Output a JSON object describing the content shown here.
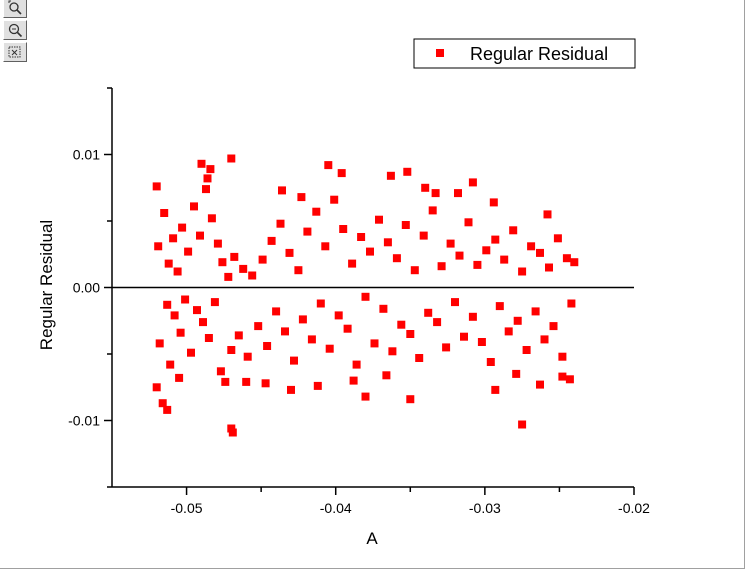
{
  "toolbar": {
    "buttons": [
      {
        "icon": "zoom-pan-icon"
      },
      {
        "icon": "zoom-in-icon"
      },
      {
        "icon": "data-reader-icon"
      }
    ]
  },
  "colors": {
    "marker": "#ff0000",
    "axis": "#000000"
  },
  "chart_data": {
    "type": "scatter",
    "title": "",
    "xlabel": "A",
    "ylabel": "Regular Residual",
    "xlim": [
      -0.055,
      -0.02
    ],
    "ylim": [
      -0.015,
      0.015
    ],
    "xticks": [
      -0.05,
      -0.04,
      -0.03,
      -0.02
    ],
    "xtick_labels": [
      "-0.05",
      "-0.04",
      "-0.03",
      "-0.02"
    ],
    "yticks": [
      -0.01,
      0.0,
      0.01
    ],
    "ytick_labels": [
      "-0.01",
      "0.00",
      "0.01"
    ],
    "reference_line_y": 0.0,
    "legend": {
      "position": "top-right",
      "entries": [
        "Regular Residual"
      ]
    },
    "series": [
      {
        "name": "Regular Residual",
        "marker": "square",
        "x": [
          -0.0519,
          -0.0518,
          -0.0515,
          -0.0513,
          -0.0512,
          -0.0511,
          -0.0509,
          -0.0508,
          -0.0506,
          -0.0504,
          -0.0503,
          -0.0501,
          -0.0499,
          -0.0497,
          -0.0495,
          -0.0493,
          -0.0491,
          -0.0489,
          -0.0487,
          -0.0485,
          -0.0483,
          -0.0481,
          -0.0479,
          -0.0477,
          -0.0476,
          -0.0474,
          -0.0472,
          -0.047,
          -0.0468,
          -0.0465,
          -0.0462,
          -0.0459,
          -0.0456,
          -0.0452,
          -0.0449,
          -0.0446,
          -0.0443,
          -0.044,
          -0.0437,
          -0.0434,
          -0.0431,
          -0.0428,
          -0.0425,
          -0.0422,
          -0.0419,
          -0.0416,
          -0.0413,
          -0.041,
          -0.0407,
          -0.0404,
          -0.0401,
          -0.0398,
          -0.0395,
          -0.0392,
          -0.0389,
          -0.0386,
          -0.0383,
          -0.038,
          -0.0377,
          -0.0374,
          -0.0371,
          -0.0368,
          -0.0365,
          -0.0362,
          -0.0359,
          -0.0356,
          -0.0353,
          -0.035,
          -0.0347,
          -0.0344,
          -0.0341,
          -0.0338,
          -0.0335,
          -0.0332,
          -0.0329,
          -0.0326,
          -0.0323,
          -0.032,
          -0.0317,
          -0.0314,
          -0.0311,
          -0.0308,
          -0.0305,
          -0.0302,
          -0.0299,
          -0.0296,
          -0.0293,
          -0.029,
          -0.0287,
          -0.0284,
          -0.0281,
          -0.0278,
          -0.0275,
          -0.0272,
          -0.0269,
          -0.0266,
          -0.0263,
          -0.026,
          -0.0257,
          -0.0254,
          -0.0251,
          -0.0248,
          -0.0245,
          -0.0242,
          -0.024,
          -0.0516,
          -0.0513,
          -0.0486,
          -0.0484,
          -0.047,
          -0.0469,
          -0.0405,
          -0.038,
          -0.035,
          -0.0352,
          -0.0275,
          -0.0308,
          -0.0436,
          -0.052,
          -0.049,
          -0.043,
          -0.0396,
          -0.0363,
          -0.034,
          -0.0258,
          -0.047,
          -0.046,
          -0.0412,
          -0.0388,
          -0.0318,
          -0.0293,
          -0.0279,
          -0.0243,
          -0.052,
          -0.0505,
          -0.0447,
          -0.0423,
          -0.0366,
          -0.0333,
          -0.0294,
          -0.0263,
          -0.0248
        ],
        "y": [
          0.0031,
          -0.0042,
          0.0056,
          -0.0013,
          0.0018,
          -0.0058,
          0.0037,
          -0.0021,
          0.0012,
          -0.0034,
          0.0045,
          -0.0009,
          0.0027,
          -0.0049,
          0.0061,
          -0.0017,
          0.0039,
          -0.0026,
          0.0074,
          -0.0038,
          0.0052,
          -0.0011,
          0.0033,
          -0.0063,
          0.0019,
          -0.0071,
          0.0008,
          -0.0047,
          0.0023,
          -0.0036,
          0.0014,
          -0.0052,
          0.0009,
          -0.0029,
          0.0021,
          -0.0044,
          0.0035,
          -0.0018,
          0.0048,
          -0.0033,
          0.0026,
          -0.0055,
          0.0013,
          -0.0024,
          0.0042,
          -0.0039,
          0.0057,
          -0.0012,
          0.0031,
          -0.0046,
          0.0066,
          -0.0021,
          0.0044,
          -0.0031,
          0.0018,
          -0.0058,
          0.0038,
          -0.0007,
          0.0027,
          -0.0042,
          0.0051,
          -0.0016,
          0.0034,
          -0.0048,
          0.0022,
          -0.0028,
          0.0047,
          -0.0035,
          0.0013,
          -0.0053,
          0.0039,
          -0.0019,
          0.0058,
          -0.0026,
          0.0016,
          -0.0045,
          0.0033,
          -0.0011,
          0.0024,
          -0.0037,
          0.0049,
          -0.0022,
          0.0017,
          -0.0041,
          0.0028,
          -0.0056,
          0.0036,
          -0.0014,
          0.0021,
          -0.0033,
          0.0043,
          -0.0025,
          0.0012,
          -0.0047,
          0.0031,
          -0.0018,
          0.0026,
          -0.0039,
          0.0015,
          -0.0029,
          0.0037,
          -0.0052,
          0.0022,
          -0.0012,
          0.0019,
          -0.0087,
          -0.0092,
          0.0082,
          0.0089,
          -0.0106,
          -0.0109,
          0.0092,
          -0.0082,
          -0.0084,
          0.0087,
          -0.0103,
          0.0079,
          0.0073,
          0.0076,
          0.0093,
          -0.0077,
          0.0086,
          0.0084,
          0.0075,
          0.0055,
          0.0097,
          -0.0071,
          -0.0074,
          -0.007,
          0.0071,
          -0.0077,
          -0.0065,
          -0.0069,
          -0.0075,
          -0.0068,
          -0.0072,
          0.0068,
          -0.0066,
          0.0071,
          0.0064,
          -0.0073,
          -0.0067
        ]
      }
    ]
  }
}
